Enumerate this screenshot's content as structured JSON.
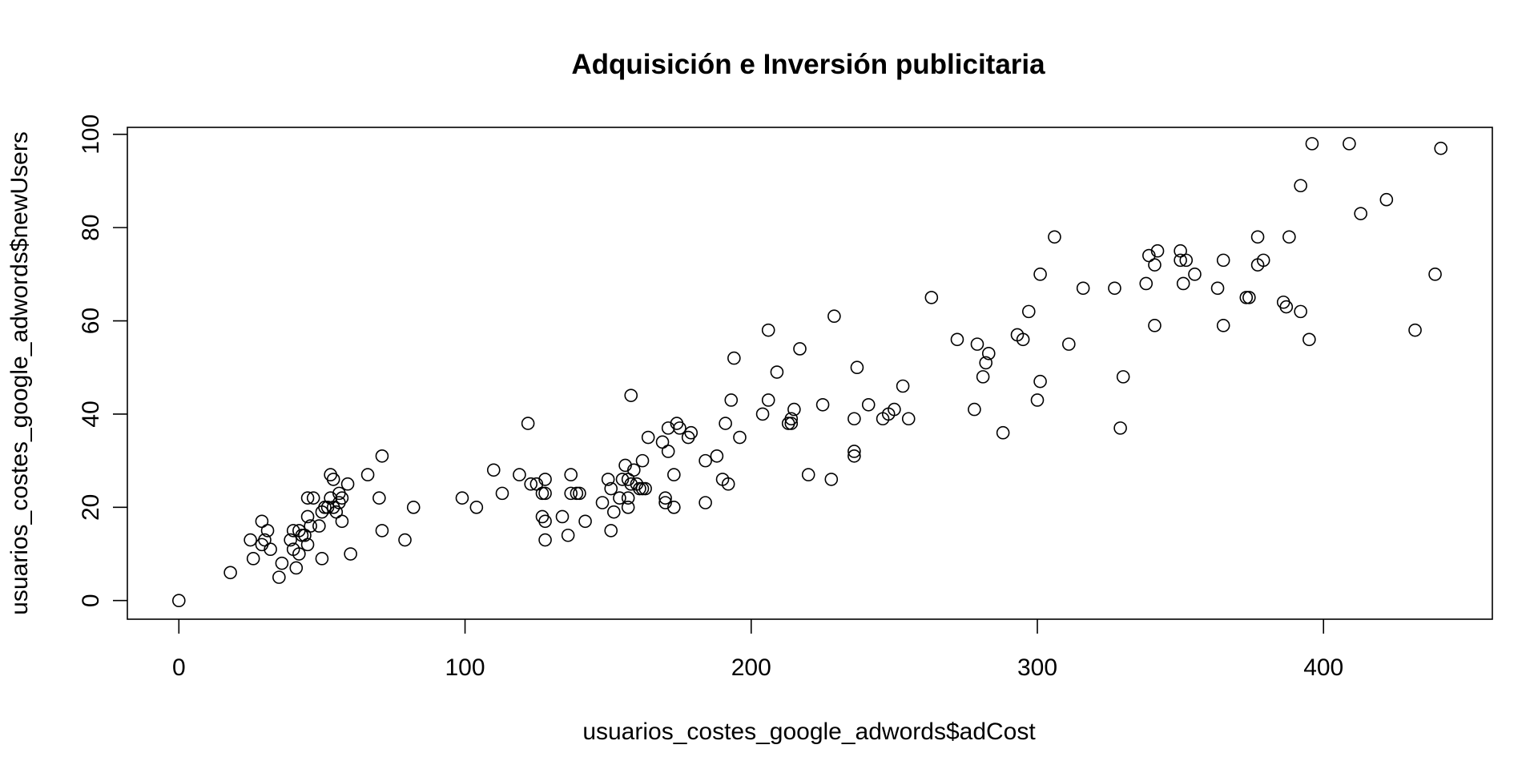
{
  "chart_data": {
    "type": "scatter",
    "title": "Adquisición e Inversión publicitaria",
    "xlabel": "usuarios_costes_google_adwords$adCost",
    "ylabel": "usuarios_costes_google_adwords$newUsers",
    "xlim": [
      -18,
      459
    ],
    "ylim": [
      -4,
      101.5
    ],
    "x_ticks": [
      0,
      100,
      200,
      300,
      400
    ],
    "y_ticks": [
      0,
      20,
      40,
      60,
      80,
      100
    ],
    "grid": false,
    "legend": "none",
    "marker": "open-circle",
    "series": [
      {
        "points": [
          [
            0,
            0
          ],
          [
            18,
            6
          ],
          [
            25,
            13
          ],
          [
            26,
            9
          ],
          [
            29,
            17
          ],
          [
            29,
            12
          ],
          [
            30,
            13
          ],
          [
            31,
            15
          ],
          [
            32,
            11
          ],
          [
            35,
            5
          ],
          [
            36,
            8
          ],
          [
            39,
            13
          ],
          [
            40,
            15
          ],
          [
            40,
            11
          ],
          [
            41,
            7
          ],
          [
            42,
            15
          ],
          [
            42,
            10
          ],
          [
            43,
            14
          ],
          [
            44,
            14
          ],
          [
            45,
            18
          ],
          [
            45,
            22
          ],
          [
            45,
            12
          ],
          [
            46,
            16
          ],
          [
            47,
            22
          ],
          [
            49,
            16
          ],
          [
            50,
            19
          ],
          [
            50,
            9
          ],
          [
            51,
            20
          ],
          [
            52,
            20
          ],
          [
            53,
            22
          ],
          [
            53,
            27
          ],
          [
            54,
            26
          ],
          [
            54,
            20
          ],
          [
            55,
            19
          ],
          [
            56,
            23
          ],
          [
            56,
            21
          ],
          [
            57,
            22
          ],
          [
            57,
            17
          ],
          [
            59,
            25
          ],
          [
            60,
            10
          ],
          [
            66,
            27
          ],
          [
            70,
            22
          ],
          [
            71,
            15
          ],
          [
            71,
            31
          ],
          [
            79,
            13
          ],
          [
            82,
            20
          ],
          [
            99,
            22
          ],
          [
            104,
            20
          ],
          [
            110,
            28
          ],
          [
            113,
            23
          ],
          [
            119,
            27
          ],
          [
            122,
            38
          ],
          [
            123,
            25
          ],
          [
            125,
            25
          ],
          [
            127,
            23
          ],
          [
            127,
            18
          ],
          [
            128,
            23
          ],
          [
            128,
            13
          ],
          [
            128,
            17
          ],
          [
            128,
            26
          ],
          [
            134,
            18
          ],
          [
            136,
            14
          ],
          [
            137,
            23
          ],
          [
            137,
            27
          ],
          [
            139,
            23
          ],
          [
            140,
            23
          ],
          [
            142,
            17
          ],
          [
            148,
            21
          ],
          [
            150,
            26
          ],
          [
            151,
            15
          ],
          [
            151,
            24
          ],
          [
            152,
            19
          ],
          [
            154,
            22
          ],
          [
            155,
            26
          ],
          [
            156,
            29
          ],
          [
            157,
            26
          ],
          [
            157,
            22
          ],
          [
            157,
            20
          ],
          [
            158,
            44
          ],
          [
            158,
            25
          ],
          [
            159,
            28
          ],
          [
            160,
            25
          ],
          [
            161,
            24
          ],
          [
            162,
            30
          ],
          [
            162,
            24
          ],
          [
            163,
            24
          ],
          [
            164,
            35
          ],
          [
            169,
            34
          ],
          [
            170,
            22
          ],
          [
            170,
            21
          ],
          [
            171,
            37
          ],
          [
            171,
            32
          ],
          [
            173,
            27
          ],
          [
            173,
            20
          ],
          [
            174,
            38
          ],
          [
            175,
            37
          ],
          [
            178,
            35
          ],
          [
            179,
            36
          ],
          [
            184,
            30
          ],
          [
            184,
            21
          ],
          [
            188,
            31
          ],
          [
            190,
            26
          ],
          [
            191,
            38
          ],
          [
            192,
            25
          ],
          [
            193,
            43
          ],
          [
            194,
            52
          ],
          [
            196,
            35
          ],
          [
            204,
            40
          ],
          [
            206,
            58
          ],
          [
            206,
            43
          ],
          [
            209,
            49
          ],
          [
            213,
            38
          ],
          [
            214,
            38
          ],
          [
            214,
            39
          ],
          [
            215,
            41
          ],
          [
            217,
            54
          ],
          [
            220,
            27
          ],
          [
            225,
            42
          ],
          [
            228,
            26
          ],
          [
            229,
            61
          ],
          [
            236,
            31
          ],
          [
            236,
            32
          ],
          [
            236,
            39
          ],
          [
            237,
            50
          ],
          [
            241,
            42
          ],
          [
            246,
            39
          ],
          [
            248,
            40
          ],
          [
            250,
            41
          ],
          [
            253,
            46
          ],
          [
            255,
            39
          ],
          [
            263,
            65
          ],
          [
            272,
            56
          ],
          [
            278,
            41
          ],
          [
            279,
            55
          ],
          [
            281,
            48
          ],
          [
            282,
            51
          ],
          [
            283,
            53
          ],
          [
            288,
            36
          ],
          [
            293,
            57
          ],
          [
            295,
            56
          ],
          [
            297,
            62
          ],
          [
            300,
            43
          ],
          [
            301,
            70
          ],
          [
            301,
            47
          ],
          [
            306,
            78
          ],
          [
            311,
            55
          ],
          [
            316,
            67
          ],
          [
            327,
            67
          ],
          [
            329,
            37
          ],
          [
            330,
            48
          ],
          [
            338,
            68
          ],
          [
            339,
            74
          ],
          [
            341,
            72
          ],
          [
            341,
            59
          ],
          [
            342,
            75
          ],
          [
            350,
            75
          ],
          [
            350,
            73
          ],
          [
            351,
            68
          ],
          [
            352,
            73
          ],
          [
            355,
            70
          ],
          [
            363,
            67
          ],
          [
            365,
            73
          ],
          [
            365,
            59
          ],
          [
            373,
            65
          ],
          [
            374,
            65
          ],
          [
            377,
            72
          ],
          [
            377,
            78
          ],
          [
            379,
            73
          ],
          [
            386,
            64
          ],
          [
            387,
            63
          ],
          [
            388,
            78
          ],
          [
            392,
            62
          ],
          [
            392,
            89
          ],
          [
            395,
            56
          ],
          [
            396,
            98
          ],
          [
            409,
            98
          ],
          [
            413,
            83
          ],
          [
            422,
            86
          ],
          [
            432,
            58
          ],
          [
            439,
            70
          ],
          [
            441,
            97
          ]
        ]
      }
    ]
  }
}
